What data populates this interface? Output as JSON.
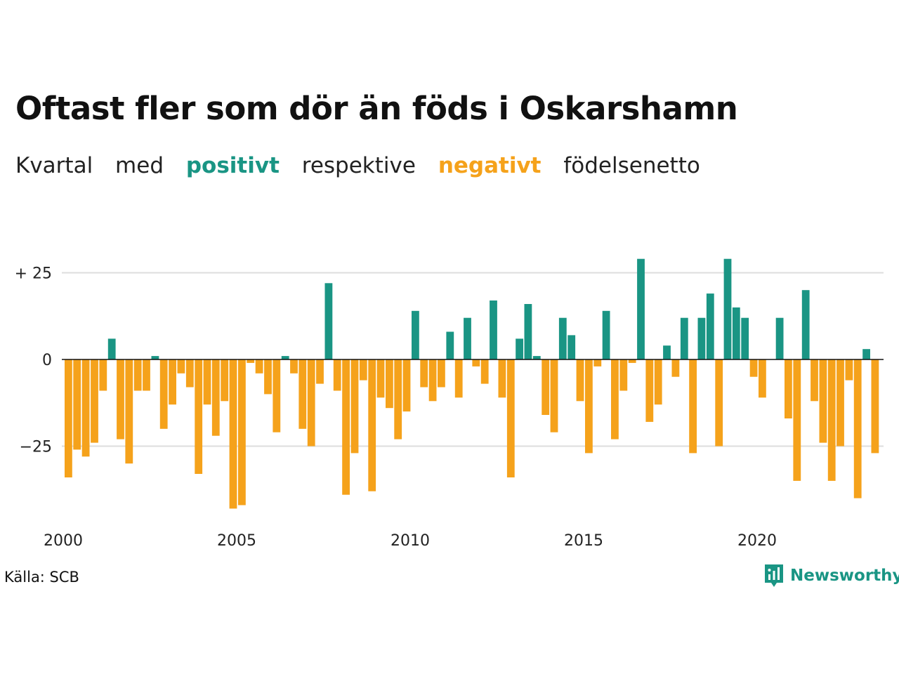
{
  "title": "Oftast fler som dör än föds i Oskarshamn",
  "subtitle": {
    "w1": "Kvartal",
    "w2": "med",
    "positive": "positivt",
    "w3": "respektive",
    "negative": "negativt",
    "w4": "födelsenetto"
  },
  "colors": {
    "positive": "#1a9584",
    "negative": "#f5a21b",
    "gridline": "#dddddd",
    "zeroline": "#111111",
    "brand": "#1a9584"
  },
  "source": "Källa: SCB",
  "brand": {
    "name": "Newsworthy",
    "icon": "bar-chart-speech-bubble-icon"
  },
  "chart_data": {
    "type": "bar",
    "x_start": "2000 Q1",
    "x_ticks": [
      "2000",
      "2005",
      "2010",
      "2015",
      "2020"
    ],
    "y_ticks": [
      {
        "value": 25,
        "label": "+ 25"
      },
      {
        "value": 0,
        "label": "0"
      },
      {
        "value": -25,
        "label": "−25"
      }
    ],
    "ylim": [
      -45,
      35
    ],
    "grid": true,
    "values": [
      -34,
      -26,
      -28,
      -24,
      -9,
      6,
      -23,
      -30,
      -9,
      -9,
      1,
      -20,
      -13,
      -4,
      -8,
      -33,
      -13,
      -22,
      -12,
      -43,
      -42,
      -1,
      -4,
      -10,
      -21,
      1,
      -4,
      -20,
      -25,
      -7,
      22,
      -9,
      -39,
      -27,
      -6,
      -38,
      -11,
      -14,
      -23,
      -15,
      14,
      -8,
      -12,
      -8,
      8,
      -11,
      12,
      -2,
      -7,
      17,
      -11,
      -34,
      6,
      16,
      1,
      -16,
      -21,
      12,
      7,
      -12,
      -27,
      -2,
      14,
      -23,
      -9,
      -1,
      29,
      -18,
      -13,
      4,
      -5,
      12,
      -27,
      12,
      19,
      -25,
      29,
      15,
      12,
      -5,
      -11,
      0,
      12,
      -17,
      -35,
      20,
      -12,
      -24,
      -35,
      -25,
      -6,
      -40,
      3,
      -27
    ]
  }
}
